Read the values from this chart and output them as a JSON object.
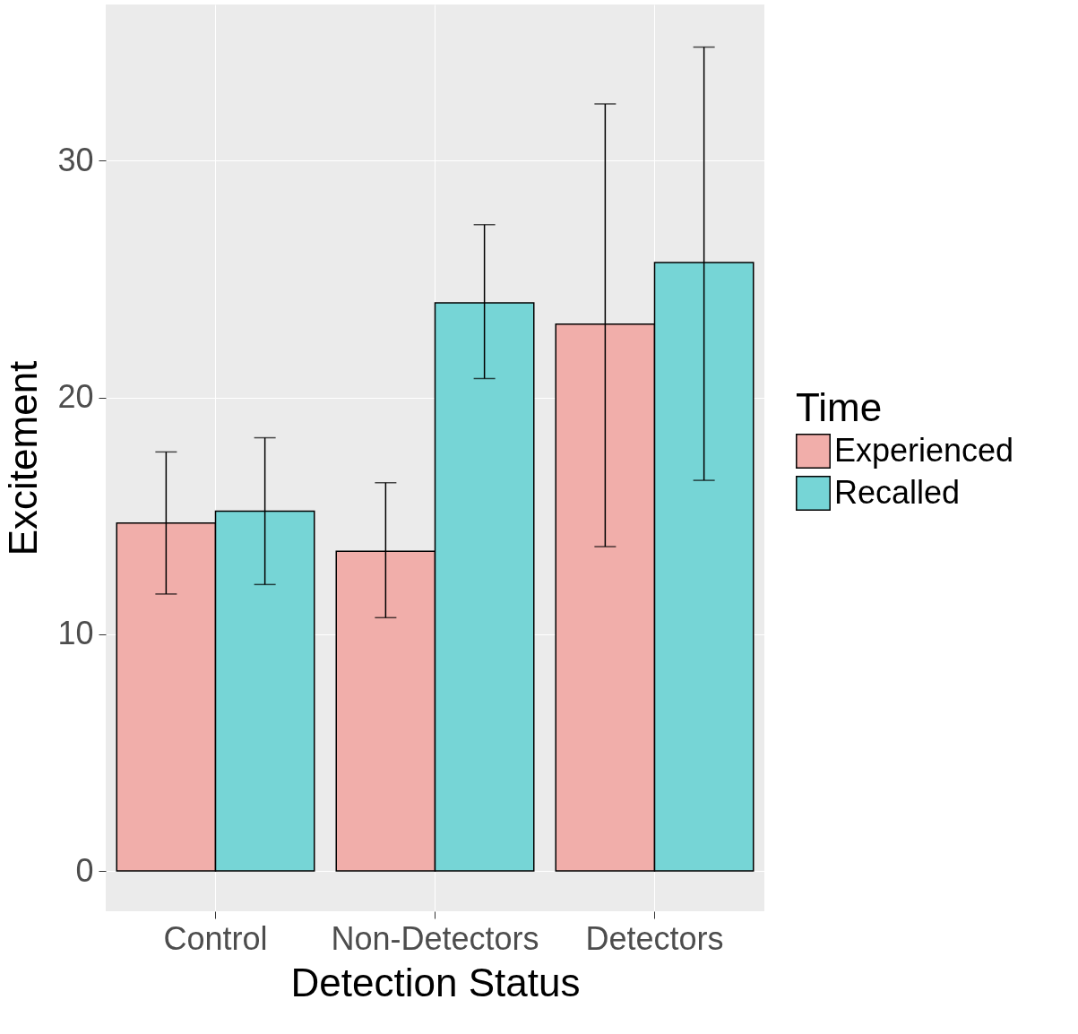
{
  "chart_data": {
    "type": "bar",
    "xlabel": "Detection Status",
    "ylabel": "Excitement",
    "legend_title": "Time",
    "categories": [
      "Control",
      "Non-Detectors",
      "Detectors"
    ],
    "series": [
      {
        "name": "Experienced",
        "color": "#f1aeaa",
        "values": [
          14.7,
          13.5,
          23.1
        ],
        "errors": [
          [
            11.7,
            17.7
          ],
          [
            10.7,
            16.4
          ],
          [
            13.7,
            32.4
          ]
        ]
      },
      {
        "name": "Recalled",
        "color": "#76d5d6",
        "values": [
          15.2,
          24.0,
          25.7
        ],
        "errors": [
          [
            12.1,
            18.3
          ],
          [
            20.8,
            27.3
          ],
          [
            16.5,
            34.8
          ]
        ]
      }
    ],
    "ylim": [
      -1.7,
      36.6
    ],
    "yticks": [
      0,
      10,
      20,
      30
    ],
    "grid": true,
    "legend": "right"
  }
}
